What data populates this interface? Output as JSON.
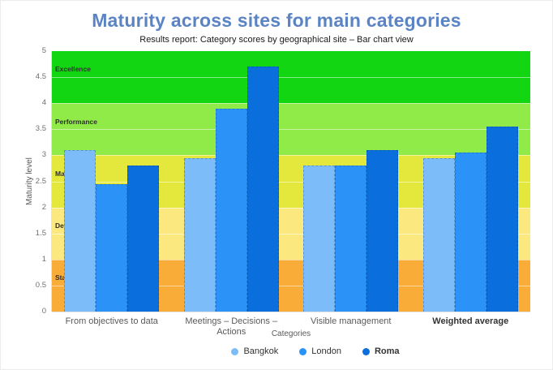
{
  "chart_data": {
    "type": "bar",
    "title": "Maturity across sites for main categories",
    "subtitle": "Results report: Category scores by geographical site – Bar chart view",
    "title_color": "#5B84C4",
    "xlabel": "Categories",
    "ylabel": "Maturity level",
    "ylim": [
      0,
      5
    ],
    "ytick_step": 0.5,
    "grid": true,
    "legend_position": "bottom",
    "categories": [
      "From objectives to data",
      "Meetings – Decisions – Actions",
      "Visible management",
      "Weighted average"
    ],
    "emphasized_category": "Weighted average",
    "series": [
      {
        "name": "Bangkok",
        "color": "#7CBCF8",
        "emphasized": false,
        "values": [
          3.1,
          2.95,
          2.8,
          2.95
        ]
      },
      {
        "name": "London",
        "color": "#2B93F8",
        "emphasized": false,
        "values": [
          2.45,
          3.9,
          2.8,
          3.05
        ]
      },
      {
        "name": "Roma",
        "color": "#0A6FDC",
        "emphasized": true,
        "values": [
          2.8,
          4.7,
          3.1,
          3.55
        ]
      }
    ],
    "bands": [
      {
        "label": "Start",
        "from": 0,
        "to": 1,
        "color": "#FAAC38"
      },
      {
        "label": "Deployment",
        "from": 1,
        "to": 2,
        "color": "#FBE980"
      },
      {
        "label": "Mastery",
        "from": 2,
        "to": 3,
        "color": "#E4E83C"
      },
      {
        "label": "Performance",
        "from": 3,
        "to": 4,
        "color": "#90EA47"
      },
      {
        "label": "Excellence",
        "from": 4,
        "to": 5,
        "color": "#11D611"
      }
    ]
  }
}
